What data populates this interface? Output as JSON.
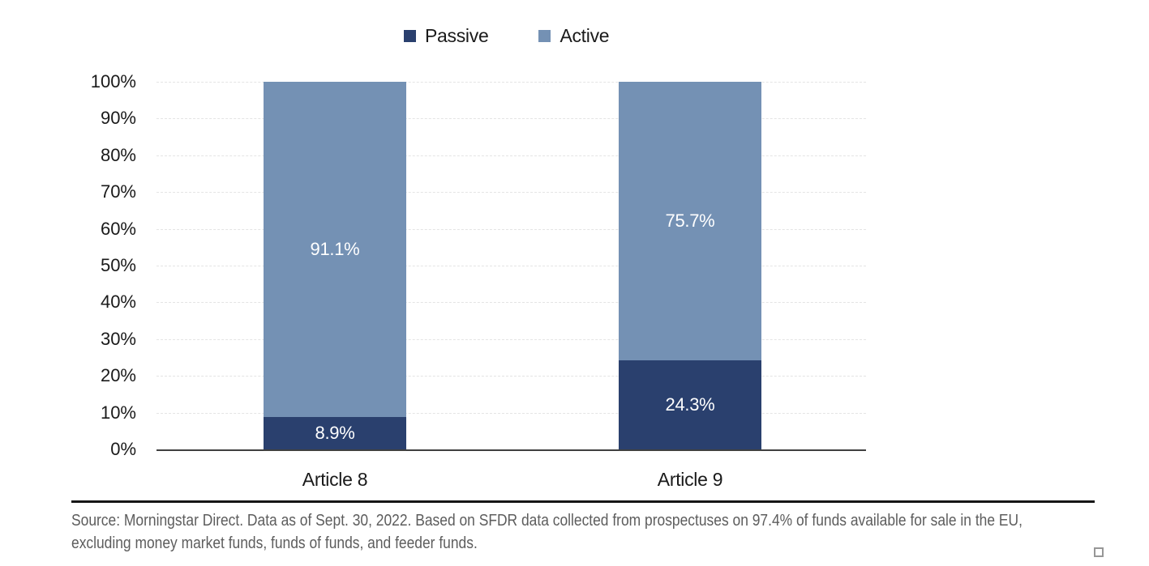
{
  "chart_data": {
    "type": "bar",
    "stacked": true,
    "categories": [
      "Article 8",
      "Article 9"
    ],
    "series": [
      {
        "name": "Passive",
        "color": "#2a406e",
        "values": [
          8.9,
          24.3
        ]
      },
      {
        "name": "Active",
        "color": "#7491b4",
        "values": [
          91.1,
          75.7
        ]
      }
    ],
    "value_labels": {
      "Passive": [
        "8.9%",
        "24.3%"
      ],
      "Active": [
        "91.1%",
        "75.7%"
      ]
    },
    "title": "",
    "xlabel": "",
    "ylabel": "",
    "ylim": [
      0,
      100
    ],
    "ytick_labels": [
      "0%",
      "10%",
      "20%",
      "30%",
      "40%",
      "50%",
      "60%",
      "70%",
      "80%",
      "90%",
      "100%"
    ],
    "grid": "horizontal-dashed",
    "legend_position": "top",
    "bar_label_color": "#ffffff"
  },
  "legend": {
    "items": [
      {
        "label": "Passive",
        "color": "#2a406e"
      },
      {
        "label": "Active",
        "color": "#7491b4"
      }
    ]
  },
  "footer": {
    "lines": [
      "Source: Morningstar Direct. Data as of Sept. 30, 2022. Based on SFDR data collected from prospectuses on 97.4% of funds available for sale in the EU,",
      "excluding money market funds, funds of funds, and feeder funds."
    ]
  }
}
